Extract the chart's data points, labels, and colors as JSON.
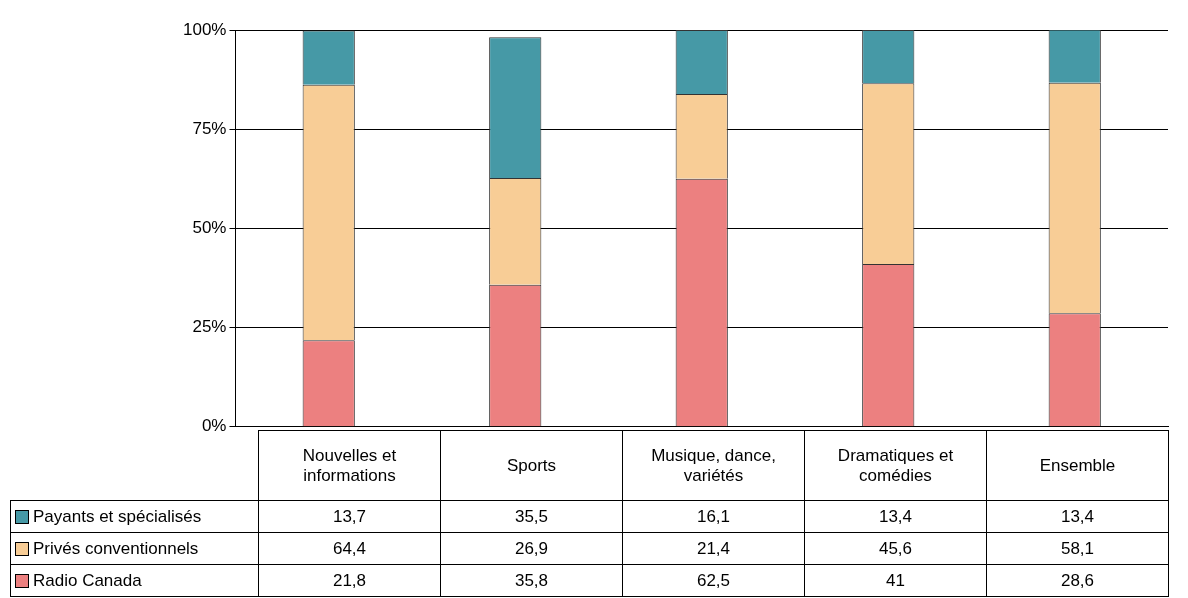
{
  "chart_data": {
    "type": "bar",
    "stacked": true,
    "categories": [
      "Nouvelles et informations",
      "Sports",
      "Musique, dance, variétés",
      "Dramatiques et comédies",
      "Ensemble"
    ],
    "series": [
      {
        "name": "Radio Canada",
        "color": "#ec8080",
        "values": [
          21.8,
          35.8,
          62.5,
          41,
          28.6
        ],
        "value_labels": [
          "21,8",
          "35,8",
          "62,5",
          "41",
          "28,6"
        ]
      },
      {
        "name": "Privés conventionnels",
        "color": "#f8cd96",
        "values": [
          64.4,
          26.9,
          21.4,
          45.6,
          58.1
        ],
        "value_labels": [
          "64,4",
          "26,9",
          "21,4",
          "45,6",
          "58,1"
        ]
      },
      {
        "name": "Payants et spécialisés",
        "color": "#4699a6",
        "values": [
          13.7,
          35.5,
          16.1,
          13.4,
          13.4
        ],
        "value_labels": [
          "13,7",
          "35,5",
          "16,1",
          "13,4",
          "13,4"
        ]
      }
    ],
    "ylim": [
      0,
      100
    ],
    "yticks": [
      {
        "value": 0,
        "label": "0%"
      },
      {
        "value": 25,
        "label": "25%"
      },
      {
        "value": 50,
        "label": "50%"
      },
      {
        "value": 75,
        "label": "75%"
      },
      {
        "value": 100,
        "label": "100%"
      }
    ],
    "grid": "y",
    "legend": "left"
  }
}
